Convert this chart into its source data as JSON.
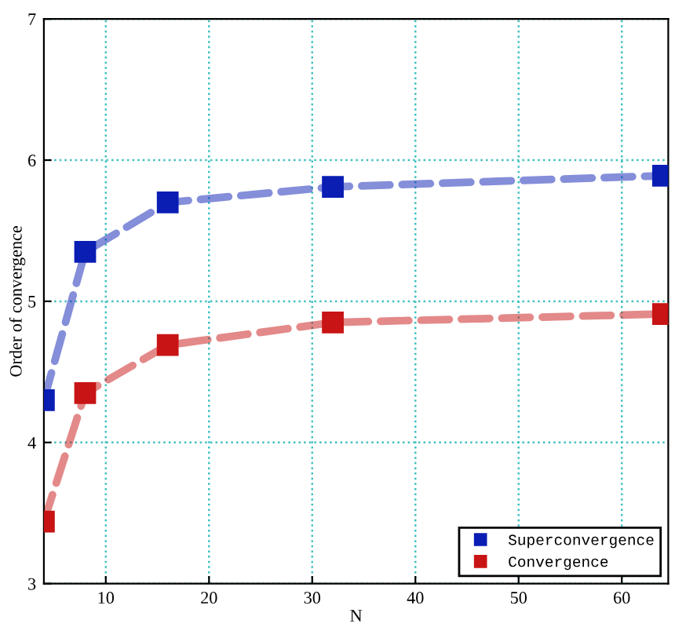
{
  "chart_data": {
    "type": "line",
    "xlabel": "N",
    "ylabel": "Order of convergence",
    "x": [
      4,
      8,
      16,
      32,
      64
    ],
    "series": [
      {
        "name": "Superconvergence",
        "color": "#0a1eb4",
        "values": [
          4.3,
          5.35,
          5.7,
          5.81,
          5.89
        ]
      },
      {
        "name": "Convergence",
        "color": "#c81414",
        "values": [
          3.44,
          4.35,
          4.69,
          4.85,
          4.91
        ]
      }
    ],
    "xlim": [
      4,
      64.5
    ],
    "ylim": [
      3,
      7
    ],
    "xticks": [
      10,
      20,
      30,
      40,
      50,
      60
    ],
    "yticks": [
      3,
      4,
      5,
      6,
      7
    ],
    "grid": true,
    "legend": "bottom right",
    "marker": "square",
    "line_style": "dashed"
  }
}
